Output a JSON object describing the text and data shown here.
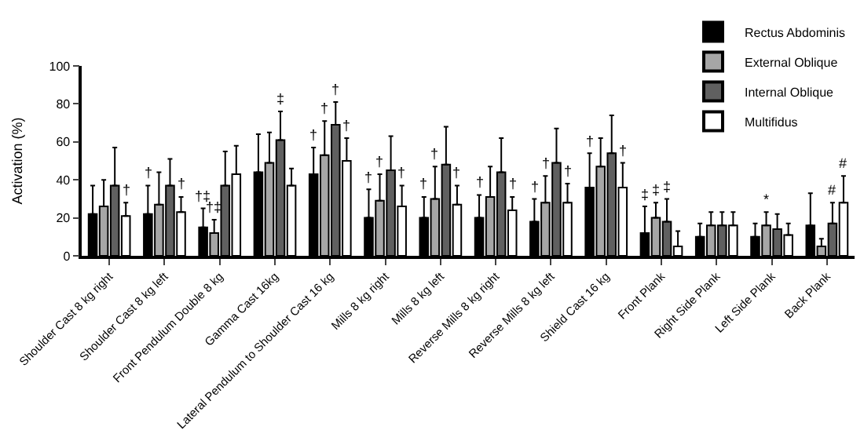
{
  "chart_data": {
    "type": "bar",
    "ylabel": "Activation (%)",
    "ylim": [
      0,
      100
    ],
    "yticks": [
      0,
      20,
      40,
      60,
      80,
      100
    ],
    "legend": "top right",
    "categories": [
      "Shoulder Cast 8 kg right",
      "Shoulder Cast 8 kg left",
      "Front Pendulum Double 8 kg",
      "Gamma Cast 16kg",
      "Lateral Pendulum to Shoulder Cast 16 kg",
      "Mills 8 kg right",
      "Mills 8 kg left",
      "Reverse Mills 8 kg right",
      "Reverse Mills 8 kg left",
      "Shield Cast 16 kg",
      "Front Plank",
      "Right Side Plank",
      "Left Side Plank",
      "Back Plank"
    ],
    "series": [
      {
        "name": "Rectus Abdominis",
        "color": "#000000",
        "values": [
          22,
          22,
          15,
          44,
          43,
          20,
          20,
          20,
          18,
          36,
          12,
          10,
          10,
          16
        ],
        "errors": [
          15,
          15,
          10,
          20,
          14,
          15,
          11,
          12,
          12,
          18,
          14,
          7,
          7,
          17
        ],
        "value_labels": [
          null,
          "†",
          "†‡",
          null,
          "†",
          "†",
          "†",
          "†",
          "†",
          "†",
          "‡",
          null,
          null,
          null
        ]
      },
      {
        "name": "External Oblique",
        "color": "#a6a6a6",
        "values": [
          26,
          27,
          12,
          49,
          53,
          29,
          30,
          31,
          28,
          47,
          20,
          16,
          16,
          5
        ],
        "errors": [
          14,
          17,
          7,
          16,
          18,
          14,
          17,
          16,
          14,
          15,
          8,
          7,
          7,
          4
        ],
        "value_labels": [
          null,
          null,
          "†‡",
          null,
          "†",
          "†",
          "†",
          null,
          "†",
          null,
          "‡",
          null,
          "*",
          null
        ]
      },
      {
        "name": "Internal Oblique",
        "color": "#606060",
        "values": [
          37,
          37,
          37,
          61,
          69,
          45,
          48,
          44,
          49,
          54,
          18,
          16,
          14,
          17
        ],
        "errors": [
          20,
          14,
          18,
          15,
          12,
          18,
          20,
          18,
          18,
          20,
          12,
          7,
          8,
          11
        ],
        "value_labels": [
          null,
          null,
          null,
          "‡",
          "†",
          null,
          null,
          null,
          null,
          null,
          "‡",
          null,
          null,
          "#"
        ]
      },
      {
        "name": "Multifidus",
        "color": "#ffffff",
        "values": [
          21,
          23,
          43,
          37,
          50,
          26,
          27,
          24,
          28,
          36,
          5,
          16,
          11,
          28
        ],
        "errors": [
          7,
          8,
          15,
          9,
          12,
          11,
          10,
          7,
          10,
          13,
          8,
          7,
          6,
          14
        ],
        "value_labels": [
          "†",
          "†",
          null,
          null,
          "†",
          "†",
          "†",
          "†",
          "†",
          "†",
          null,
          null,
          null,
          "#"
        ]
      }
    ]
  }
}
